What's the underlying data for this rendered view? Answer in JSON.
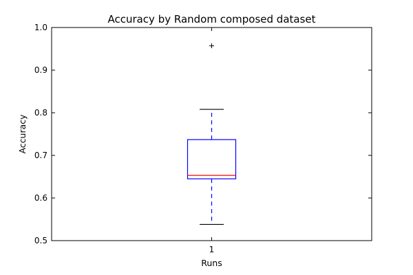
{
  "chart_data": {
    "type": "box",
    "title": "Accuracy by Random composed dataset",
    "xlabel": "Runs",
    "ylabel": "Accuracy",
    "categories": [
      "1"
    ],
    "ylim": [
      0.5,
      1.0
    ],
    "yticks": [
      0.5,
      0.6,
      0.7,
      0.8,
      0.9,
      1.0
    ],
    "ytick_labels": [
      "0.5",
      "0.6",
      "0.7",
      "0.8",
      "0.9",
      "1.0"
    ],
    "boxes": [
      {
        "category": "1",
        "whisker_low": 0.538,
        "q1": 0.645,
        "median": 0.653,
        "q3": 0.737,
        "whisker_high": 0.808,
        "outliers": [
          0.957
        ]
      }
    ],
    "colors": {
      "box": "#0000ff",
      "median": "#ff0000",
      "whisker": "#0000ff",
      "cap": "#000000",
      "outlier": "#000000",
      "axes": "#000000"
    }
  }
}
